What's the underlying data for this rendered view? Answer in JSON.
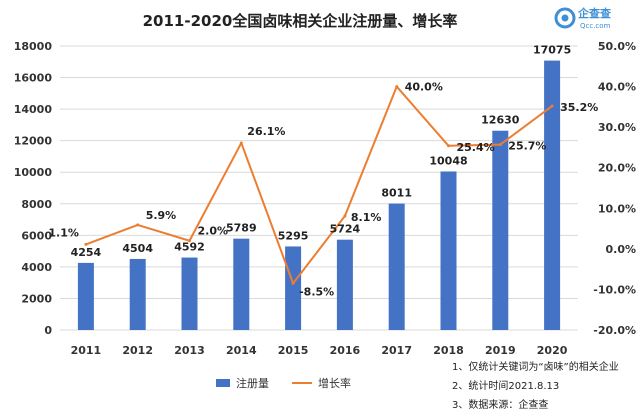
{
  "title": "2011-2020全国卤味相关企业注册量、增长率",
  "logo": {
    "name": "企查查",
    "sub": "Qcc.com"
  },
  "notes": [
    "1、仅统计关键词为“卤味”的相关企业",
    "2、统计时间2021.8.13",
    "3、数据来源：企查查"
  ],
  "colors": {
    "bar": "#4472c4",
    "line": "#ed7d31",
    "grid": "#d9d9d9"
  },
  "chart_data": {
    "type": "bar",
    "title": "2011-2020全国卤味相关企业注册量、增长率",
    "categories": [
      "2011",
      "2012",
      "2013",
      "2014",
      "2015",
      "2016",
      "2017",
      "2018",
      "2019",
      "2020"
    ],
    "series": [
      {
        "name": "注册量",
        "type": "bar",
        "axis": "left",
        "values": [
          4254,
          4504,
          4592,
          5789,
          5295,
          5724,
          8011,
          10048,
          12630,
          17075
        ]
      },
      {
        "name": "增长率",
        "type": "line",
        "axis": "right",
        "values": [
          1.1,
          5.9,
          2.0,
          26.1,
          -8.5,
          8.1,
          40.0,
          25.4,
          25.7,
          35.2
        ],
        "labels": [
          "1.1%",
          "5.9%",
          "2.0%",
          "26.1%",
          "-8.5%",
          "8.1%",
          "40.0%",
          "25.4%",
          "25.7%",
          "35.2%"
        ]
      }
    ],
    "y_left": {
      "min": 0,
      "max": 18000,
      "ticks": [
        "0",
        "2000",
        "4000",
        "6000",
        "8000",
        "10000",
        "12000",
        "14000",
        "16000",
        "18000"
      ]
    },
    "y_right": {
      "min": -20,
      "max": 50,
      "ticks": [
        "-20.0%",
        "-10.0%",
        "0.0%",
        "10.0%",
        "20.0%",
        "30.0%",
        "40.0%",
        "50.0%"
      ]
    },
    "grid": true,
    "legend": "bottom"
  }
}
